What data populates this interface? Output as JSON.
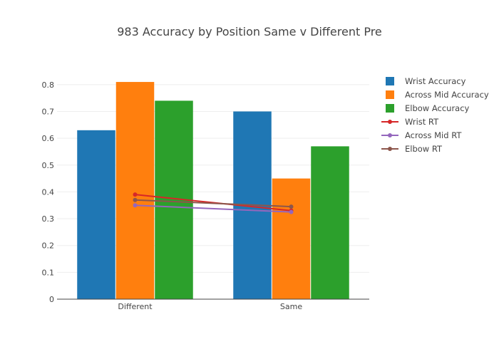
{
  "chart_data": {
    "type": "bar",
    "title": "983 Accuracy by Position Same v Different Pre",
    "xlabel": "",
    "ylabel": "",
    "categories": [
      "Different",
      "Same"
    ],
    "ylim": [
      0,
      0.85
    ],
    "yticks": [
      0,
      0.1,
      0.2,
      0.3,
      0.4,
      0.5,
      0.6,
      0.7,
      0.8
    ],
    "yticklabels": [
      "0",
      "0.1",
      "0.2",
      "0.3",
      "0.4",
      "0.5",
      "0.6",
      "0.7",
      "0.8"
    ],
    "grid": true,
    "legend_position": "right",
    "bar_series": [
      {
        "name": "Wrist Accuracy",
        "color": "#1f77b4",
        "values": [
          0.63,
          0.7
        ]
      },
      {
        "name": "Across Mid Accuracy",
        "color": "#ff7f0e",
        "values": [
          0.81,
          0.45
        ]
      },
      {
        "name": "Elbow Accuracy",
        "color": "#2ca02c",
        "values": [
          0.74,
          0.57
        ]
      }
    ],
    "line_series": [
      {
        "name": "Wrist RT",
        "color": "#d62728",
        "values": [
          0.39,
          0.33
        ]
      },
      {
        "name": "Across Mid RT",
        "color": "#9467bd",
        "values": [
          0.35,
          0.325
        ]
      },
      {
        "name": "Elbow RT",
        "color": "#8c564b",
        "values": [
          0.37,
          0.345
        ]
      }
    ]
  }
}
